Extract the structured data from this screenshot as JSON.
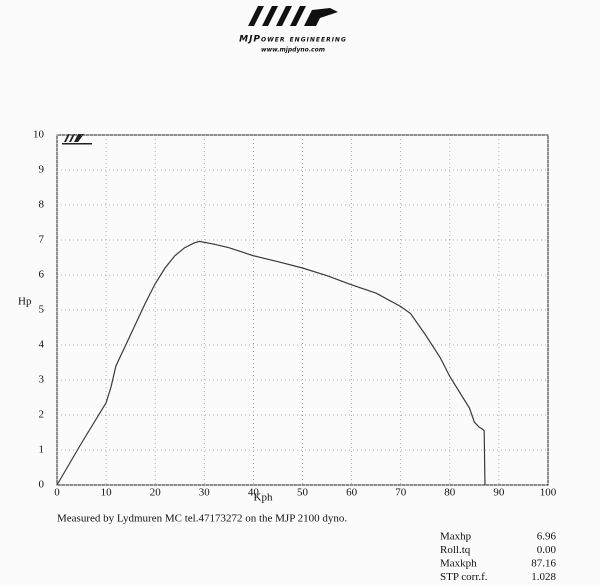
{
  "header": {
    "brand": "MJPower engineering",
    "url": "www.mjpdyno.com"
  },
  "chart_data": {
    "type": "line",
    "xlabel": "Kph",
    "ylabel": "Hp",
    "x": [
      0,
      5,
      10,
      11,
      12,
      14,
      16,
      18,
      20,
      22,
      24,
      26,
      28,
      29,
      32,
      35,
      40,
      45,
      50,
      55,
      60,
      65,
      70,
      72,
      75,
      78,
      80,
      82,
      84,
      85,
      86,
      86.6,
      87,
      87.16
    ],
    "values": [
      0,
      1.2,
      2.35,
      2.8,
      3.4,
      4.0,
      4.6,
      5.2,
      5.75,
      6.2,
      6.55,
      6.78,
      6.92,
      6.96,
      6.88,
      6.78,
      6.55,
      6.38,
      6.2,
      5.98,
      5.72,
      5.48,
      5.1,
      4.9,
      4.3,
      3.65,
      3.1,
      2.65,
      2.2,
      1.8,
      1.65,
      1.6,
      1.55,
      0
    ],
    "color": "#3a3a3a",
    "xlim": [
      0,
      100
    ],
    "xticks": [
      0,
      10,
      20,
      30,
      40,
      50,
      60,
      70,
      80,
      90,
      100
    ],
    "ylim": [
      0,
      10
    ],
    "yticks": [
      0,
      1,
      2,
      3,
      4,
      5,
      6,
      7,
      8,
      9,
      10
    ],
    "grid": true
  },
  "footer": "Measured by Lydmuren MC tel.47173272 on the MJP 2100 dyno.",
  "stats": [
    [
      "Maxhp",
      "6.96"
    ],
    [
      "Roll.tq",
      "0.00"
    ],
    [
      "Maxkph",
      "87.16"
    ],
    [
      "STP corr.f.",
      "1.028"
    ]
  ]
}
